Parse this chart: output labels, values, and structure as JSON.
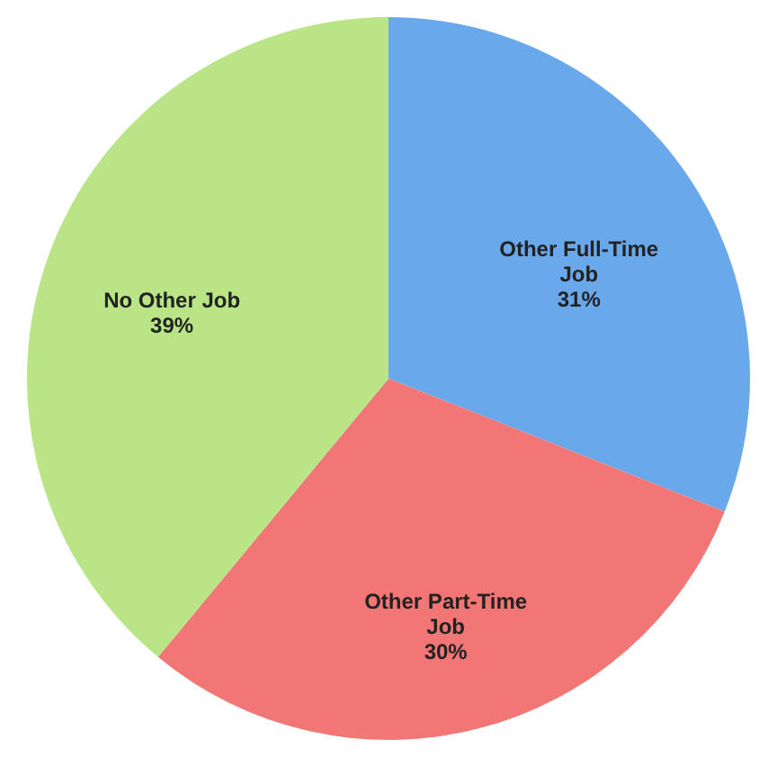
{
  "chart_data": {
    "type": "pie",
    "categories": [
      "Other Full-Time Job",
      "Other Part-Time Job",
      "No Other Job"
    ],
    "values": [
      31,
      30,
      39
    ],
    "colors": [
      "#6aa8ec",
      "#f27676",
      "#b9e586"
    ],
    "value_labels": [
      "31%",
      "30%",
      "39%"
    ]
  }
}
